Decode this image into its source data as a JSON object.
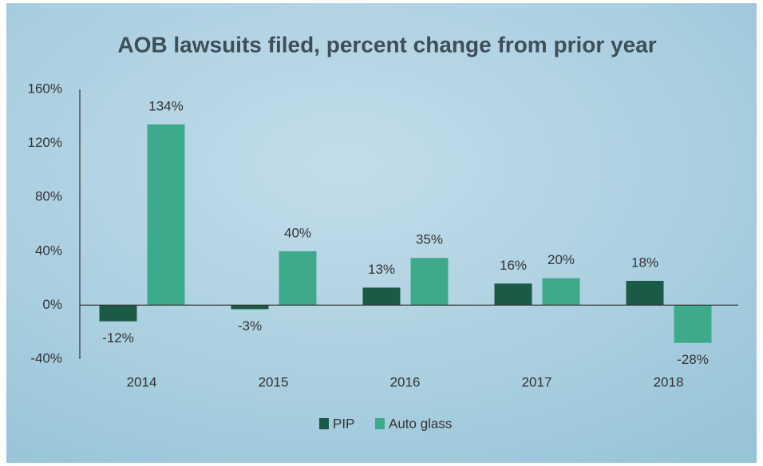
{
  "chart_data": {
    "type": "bar",
    "title": "AOB lawsuits filed, percent change from prior year",
    "categories": [
      "2014",
      "2015",
      "2016",
      "2017",
      "2018"
    ],
    "series": [
      {
        "name": "PIP",
        "color": "#1b5a46",
        "values": [
          -12,
          -3,
          13,
          16,
          18
        ],
        "value_labels": [
          "-12%",
          "-3%",
          "13%",
          "16%",
          "18%"
        ]
      },
      {
        "name": "Auto glass",
        "color": "#3dab8b",
        "values": [
          134,
          40,
          35,
          20,
          -28
        ],
        "value_labels": [
          "134%",
          "40%",
          "35%",
          "20%",
          "-28%"
        ]
      }
    ],
    "ylim": [
      -40,
      160
    ],
    "yticks": [
      {
        "value": -40,
        "label": "-40%"
      },
      {
        "value": 0,
        "label": "0%"
      },
      {
        "value": 40,
        "label": "40%"
      },
      {
        "value": 80,
        "label": "80%"
      },
      {
        "value": 120,
        "label": "120%"
      },
      {
        "value": 160,
        "label": "160%"
      }
    ],
    "grid": false,
    "legend": "bottom"
  }
}
